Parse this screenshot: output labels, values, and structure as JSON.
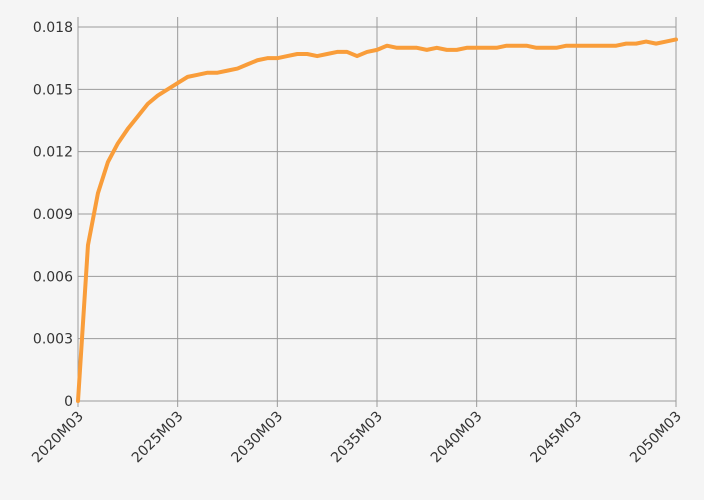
{
  "chart_data": {
    "type": "line",
    "x": [
      "2020M03",
      "2020M09",
      "2021M03",
      "2021M09",
      "2022M03",
      "2022M09",
      "2023M03",
      "2023M09",
      "2024M03",
      "2024M09",
      "2025M03",
      "2025M09",
      "2026M03",
      "2026M09",
      "2027M03",
      "2027M09",
      "2028M03",
      "2028M09",
      "2029M03",
      "2029M09",
      "2030M03",
      "2030M09",
      "2031M03",
      "2031M09",
      "2032M03",
      "2032M09",
      "2033M03",
      "2033M09",
      "2034M03",
      "2034M09",
      "2035M03",
      "2035M09",
      "2036M03",
      "2036M09",
      "2037M03",
      "2037M09",
      "2038M03",
      "2038M09",
      "2039M03",
      "2039M09",
      "2040M03",
      "2040M09",
      "2041M03",
      "2041M09",
      "2042M03",
      "2042M09",
      "2043M03",
      "2043M09",
      "2044M03",
      "2044M09",
      "2045M03",
      "2045M09",
      "2046M03",
      "2046M09",
      "2047M03",
      "2047M09",
      "2048M03",
      "2048M09",
      "2049M03",
      "2049M09",
      "2050M03"
    ],
    "series": [
      {
        "color": "#f99d3a",
        "values": [
          0,
          0.0075,
          0.01,
          0.0115,
          0.0124,
          0.0131,
          0.0137,
          0.0143,
          0.0147,
          0.015,
          0.0153,
          0.0156,
          0.0157,
          0.0158,
          0.0158,
          0.0159,
          0.016,
          0.0162,
          0.0164,
          0.0165,
          0.0165,
          0.0166,
          0.0167,
          0.0167,
          0.0166,
          0.0167,
          0.0168,
          0.0168,
          0.0166,
          0.0168,
          0.0169,
          0.0171,
          0.017,
          0.017,
          0.017,
          0.0169,
          0.017,
          0.0169,
          0.0169,
          0.017,
          0.017,
          0.017,
          0.017,
          0.0171,
          0.0171,
          0.0171,
          0.017,
          0.017,
          0.017,
          0.0171,
          0.0171,
          0.0171,
          0.0171,
          0.0171,
          0.0171,
          0.0172,
          0.0172,
          0.0173,
          0.0172,
          0.0173,
          0.0174
        ]
      }
    ],
    "xticks": [
      "2020M03",
      "2025M03",
      "2030M03",
      "2035M03",
      "2040M03",
      "2045M03",
      "2050M03"
    ],
    "ylim": [
      0,
      0.018
    ],
    "yticks": [
      0,
      0.003,
      0.006,
      0.009,
      0.012,
      0.015,
      0.018
    ],
    "grid": true
  }
}
